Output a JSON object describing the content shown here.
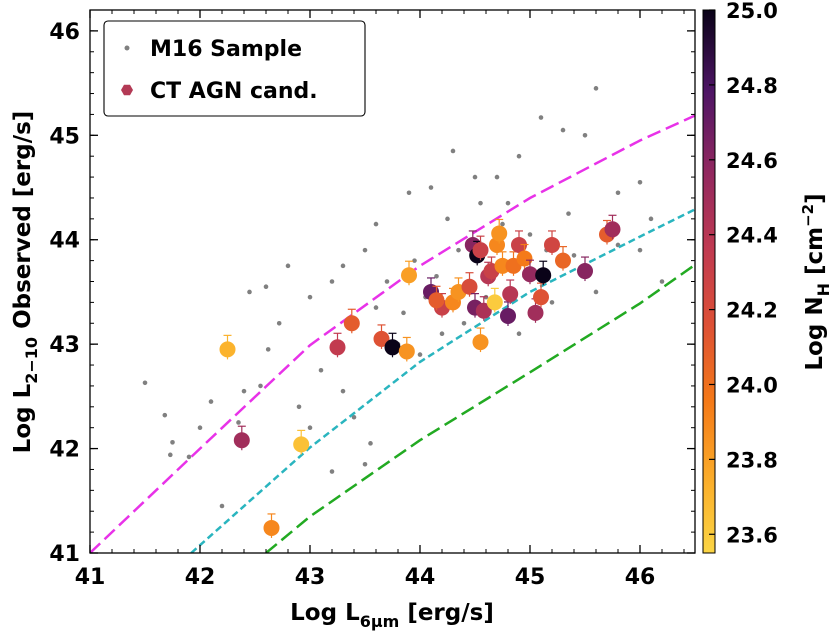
{
  "chart_data": {
    "type": "scatter",
    "xlabel": {
      "main": "Log L",
      "sub": "6μm",
      "tail": " [erg/s]"
    },
    "ylabel": {
      "main": "Log L",
      "sub": "2−10",
      "tail": " Observed [erg/s]"
    },
    "xlim": [
      41,
      46.5
    ],
    "ylim": [
      41,
      46.2
    ],
    "xticks": [
      "41",
      "42",
      "43",
      "44",
      "45",
      "46"
    ],
    "yticks": [
      "41",
      "42",
      "43",
      "44",
      "45",
      "46"
    ],
    "legend": {
      "position": "top-left",
      "entries": [
        {
          "label": "M16 Sample",
          "marker": "small-gray-dot"
        },
        {
          "label": "CT AGN cand.",
          "marker": "hexagon"
        }
      ]
    },
    "colorbar": {
      "label": {
        "main": "Log N",
        "sub": "H",
        "tail": " [cm",
        "sup": "−2",
        "end": "]"
      },
      "range": [
        23.55,
        25.0
      ],
      "ticks": [
        "23.6",
        "23.8",
        "24.0",
        "24.2",
        "24.4",
        "24.6",
        "24.8",
        "25.0"
      ],
      "colormap": "inferno_r"
    },
    "curves": [
      {
        "style": "long-dash",
        "color": "#e832e8",
        "points": [
          [
            41.0,
            41.0
          ],
          [
            42.0,
            42.0
          ],
          [
            43.0,
            42.99
          ],
          [
            44.0,
            43.75
          ],
          [
            45.0,
            44.4
          ],
          [
            46.0,
            44.95
          ],
          [
            46.5,
            45.19
          ]
        ]
      },
      {
        "style": "short-dash",
        "color": "#2ab5bf",
        "points": [
          [
            41.92,
            41.0
          ],
          [
            43.0,
            42.01
          ],
          [
            44.0,
            42.83
          ],
          [
            45.0,
            43.5
          ],
          [
            46.0,
            44.03
          ],
          [
            46.5,
            44.29
          ]
        ]
      },
      {
        "style": "long-dash",
        "color": "#22aa22",
        "points": [
          [
            42.6,
            41.0
          ],
          [
            43.0,
            41.35
          ],
          [
            44.0,
            42.08
          ],
          [
            45.0,
            42.73
          ],
          [
            46.0,
            43.39
          ],
          [
            46.5,
            43.76
          ]
        ]
      }
    ],
    "background_sample": {
      "name": "M16 Sample",
      "color": "#808080",
      "points": [
        [
          41.5,
          42.63
        ],
        [
          41.68,
          42.32
        ],
        [
          41.75,
          42.06
        ],
        [
          41.9,
          41.92
        ],
        [
          41.73,
          41.94
        ],
        [
          42.2,
          41.45
        ],
        [
          42.1,
          42.45
        ],
        [
          42.0,
          42.2
        ],
        [
          42.35,
          42.25
        ],
        [
          42.55,
          42.6
        ],
        [
          42.62,
          42.95
        ],
        [
          42.4,
          42.55
        ],
        [
          42.8,
          43.75
        ],
        [
          42.6,
          43.55
        ],
        [
          42.45,
          43.5
        ],
        [
          42.72,
          43.2
        ],
        [
          43.0,
          43.45
        ],
        [
          43.2,
          43.6
        ],
        [
          43.3,
          43.75
        ],
        [
          43.5,
          43.9
        ],
        [
          43.6,
          43.35
        ],
        [
          42.9,
          42.4
        ],
        [
          43.1,
          42.75
        ],
        [
          43.4,
          42.3
        ],
        [
          43.55,
          42.05
        ],
        [
          43.2,
          41.78
        ],
        [
          43.5,
          41.85
        ],
        [
          43.3,
          42.55
        ],
        [
          43.0,
          42.2
        ],
        [
          43.8,
          43.0
        ],
        [
          44.0,
          42.9
        ],
        [
          44.2,
          43.1
        ],
        [
          44.4,
          43.2
        ],
        [
          44.6,
          43.45
        ],
        [
          44.9,
          43.1
        ],
        [
          45.2,
          43.4
        ],
        [
          45.6,
          43.5
        ],
        [
          44.7,
          44.6
        ],
        [
          44.9,
          44.8
        ],
        [
          45.1,
          45.17
        ],
        [
          45.3,
          45.05
        ],
        [
          45.5,
          45.0
        ],
        [
          45.6,
          45.45
        ],
        [
          45.8,
          44.45
        ],
        [
          46.0,
          44.55
        ],
        [
          46.1,
          44.2
        ],
        [
          46.2,
          43.6
        ],
        [
          44.3,
          44.85
        ],
        [
          44.5,
          44.6
        ],
        [
          44.1,
          44.5
        ],
        [
          43.9,
          44.45
        ],
        [
          43.6,
          44.15
        ],
        [
          44.8,
          44.35
        ],
        [
          45.0,
          44.05
        ],
        [
          45.4,
          43.85
        ],
        [
          45.8,
          43.95
        ],
        [
          46.0,
          43.9
        ],
        [
          44.05,
          43.45
        ],
        [
          44.15,
          43.65
        ],
        [
          43.95,
          43.8
        ],
        [
          44.35,
          43.9
        ],
        [
          44.45,
          43.55
        ],
        [
          44.65,
          43.75
        ],
        [
          44.75,
          44.15
        ],
        [
          44.95,
          43.65
        ],
        [
          45.15,
          43.9
        ],
        [
          45.35,
          44.25
        ],
        [
          43.7,
          43.6
        ],
        [
          43.4,
          43.2
        ],
        [
          43.85,
          43.3
        ],
        [
          44.25,
          44.2
        ],
        [
          44.55,
          44.35
        ]
      ]
    },
    "ct_agn_candidates": [
      [
        42.25,
        42.95,
        23.72
      ],
      [
        42.92,
        42.04,
        23.65
      ],
      [
        42.38,
        42.08,
        24.5
      ],
      [
        42.65,
        41.24,
        23.9
      ],
      [
        43.25,
        42.97,
        24.35
      ],
      [
        43.38,
        43.2,
        24.1
      ],
      [
        43.65,
        43.05,
        24.15
      ],
      [
        43.75,
        42.97,
        25.0
      ],
      [
        43.88,
        42.93,
        23.85
      ],
      [
        43.9,
        43.66,
        23.8
      ],
      [
        44.1,
        43.5,
        24.7
      ],
      [
        44.2,
        43.35,
        24.3
      ],
      [
        44.15,
        43.42,
        24.1
      ],
      [
        44.3,
        43.4,
        23.9
      ],
      [
        44.35,
        43.5,
        23.85
      ],
      [
        44.45,
        43.55,
        24.2
      ],
      [
        44.48,
        43.95,
        24.6
      ],
      [
        44.52,
        43.85,
        25.0
      ],
      [
        44.5,
        43.35,
        24.65
      ],
      [
        44.55,
        43.9,
        24.3
      ],
      [
        44.58,
        43.32,
        24.45
      ],
      [
        44.62,
        43.65,
        24.4
      ],
      [
        44.65,
        43.7,
        24.3
      ],
      [
        44.55,
        43.02,
        23.85
      ],
      [
        44.68,
        43.4,
        23.6
      ],
      [
        44.7,
        43.95,
        23.9
      ],
      [
        44.72,
        44.06,
        23.85
      ],
      [
        44.75,
        43.75,
        23.9
      ],
      [
        44.8,
        43.27,
        24.7
      ],
      [
        44.82,
        43.48,
        24.4
      ],
      [
        44.85,
        43.75,
        24.0
      ],
      [
        44.9,
        43.95,
        24.3
      ],
      [
        44.95,
        43.82,
        23.95
      ],
      [
        45.0,
        43.67,
        24.55
      ],
      [
        45.05,
        43.3,
        24.5
      ],
      [
        45.1,
        43.45,
        24.15
      ],
      [
        45.12,
        43.66,
        25.0
      ],
      [
        45.2,
        43.95,
        24.25
      ],
      [
        45.3,
        43.8,
        24.05
      ],
      [
        45.5,
        43.7,
        24.6
      ],
      [
        45.7,
        44.05,
        24.1
      ],
      [
        45.75,
        44.1,
        24.5
      ]
    ]
  }
}
